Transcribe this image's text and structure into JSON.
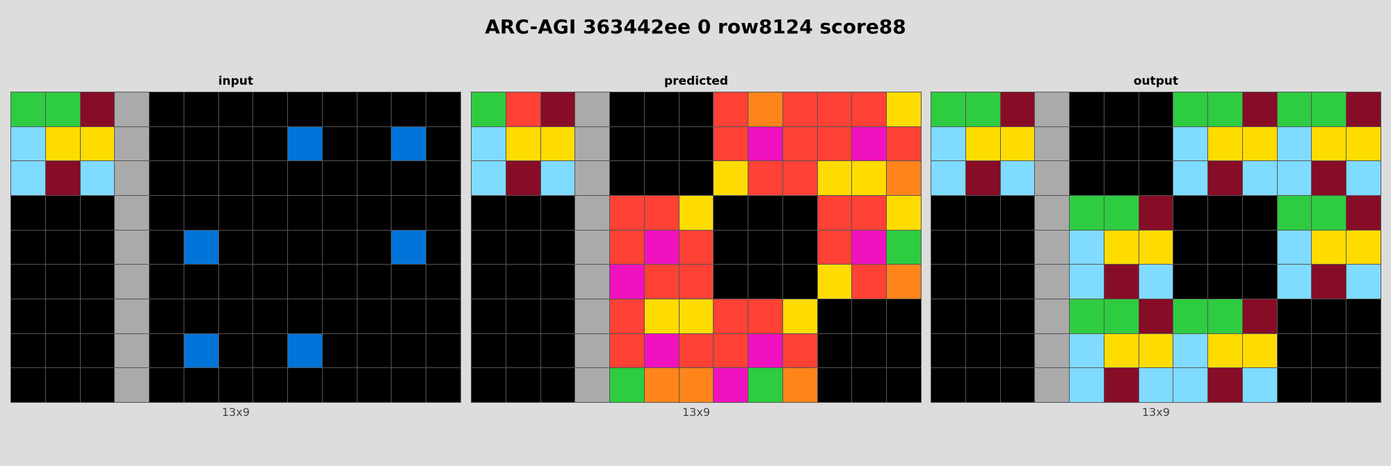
{
  "title": "ARC-AGI 363442ee 0 row8124 score88",
  "palette": {
    "0": "#000000",
    "1": "#0074d9",
    "2": "#ff4136",
    "3": "#2ecc40",
    "4": "#ffdc00",
    "5": "#aaaaaa",
    "6": "#f012be",
    "7": "#ff851b",
    "8": "#7fdbff",
    "9": "#870c25"
  },
  "panels": [
    {
      "label": "input",
      "dims": "13x9",
      "grid": [
        [
          3,
          3,
          9,
          5,
          0,
          0,
          0,
          0,
          0,
          0,
          0,
          0,
          0
        ],
        [
          8,
          4,
          4,
          5,
          0,
          0,
          0,
          0,
          1,
          0,
          0,
          1,
          0
        ],
        [
          8,
          9,
          8,
          5,
          0,
          0,
          0,
          0,
          0,
          0,
          0,
          0,
          0
        ],
        [
          0,
          0,
          0,
          5,
          0,
          0,
          0,
          0,
          0,
          0,
          0,
          0,
          0
        ],
        [
          0,
          0,
          0,
          5,
          0,
          1,
          0,
          0,
          0,
          0,
          0,
          1,
          0
        ],
        [
          0,
          0,
          0,
          5,
          0,
          0,
          0,
          0,
          0,
          0,
          0,
          0,
          0
        ],
        [
          0,
          0,
          0,
          5,
          0,
          0,
          0,
          0,
          0,
          0,
          0,
          0,
          0
        ],
        [
          0,
          0,
          0,
          5,
          0,
          1,
          0,
          0,
          1,
          0,
          0,
          0,
          0
        ],
        [
          0,
          0,
          0,
          5,
          0,
          0,
          0,
          0,
          0,
          0,
          0,
          0,
          0
        ]
      ]
    },
    {
      "label": "predicted",
      "dims": "13x9",
      "grid": [
        [
          3,
          2,
          9,
          5,
          0,
          0,
          0,
          2,
          7,
          2,
          2,
          2,
          4
        ],
        [
          8,
          4,
          4,
          5,
          0,
          0,
          0,
          2,
          6,
          2,
          2,
          6,
          2
        ],
        [
          8,
          9,
          8,
          5,
          0,
          0,
          0,
          4,
          2,
          2,
          4,
          4,
          7
        ],
        [
          0,
          0,
          0,
          5,
          2,
          2,
          4,
          0,
          0,
          0,
          2,
          2,
          4
        ],
        [
          0,
          0,
          0,
          5,
          2,
          6,
          2,
          0,
          0,
          0,
          2,
          6,
          3
        ],
        [
          0,
          0,
          0,
          5,
          6,
          2,
          2,
          0,
          0,
          0,
          4,
          2,
          7
        ],
        [
          0,
          0,
          0,
          5,
          2,
          4,
          4,
          2,
          2,
          4,
          0,
          0,
          0
        ],
        [
          0,
          0,
          0,
          5,
          2,
          6,
          2,
          2,
          6,
          2,
          0,
          0,
          0
        ],
        [
          0,
          0,
          0,
          5,
          3,
          7,
          7,
          6,
          3,
          7,
          0,
          0,
          0
        ]
      ]
    },
    {
      "label": "output",
      "dims": "13x9",
      "grid": [
        [
          3,
          3,
          9,
          5,
          0,
          0,
          0,
          3,
          3,
          9,
          3,
          3,
          9
        ],
        [
          8,
          4,
          4,
          5,
          0,
          0,
          0,
          8,
          4,
          4,
          8,
          4,
          4
        ],
        [
          8,
          9,
          8,
          5,
          0,
          0,
          0,
          8,
          9,
          8,
          8,
          9,
          8
        ],
        [
          0,
          0,
          0,
          5,
          3,
          3,
          9,
          0,
          0,
          0,
          3,
          3,
          9
        ],
        [
          0,
          0,
          0,
          5,
          8,
          4,
          4,
          0,
          0,
          0,
          8,
          4,
          4
        ],
        [
          0,
          0,
          0,
          5,
          8,
          9,
          8,
          0,
          0,
          0,
          8,
          9,
          8
        ],
        [
          0,
          0,
          0,
          5,
          3,
          3,
          9,
          3,
          3,
          9,
          0,
          0,
          0
        ],
        [
          0,
          0,
          0,
          5,
          8,
          4,
          4,
          8,
          4,
          4,
          0,
          0,
          0
        ],
        [
          0,
          0,
          0,
          5,
          8,
          9,
          8,
          8,
          9,
          8,
          0,
          0,
          0
        ]
      ]
    }
  ]
}
